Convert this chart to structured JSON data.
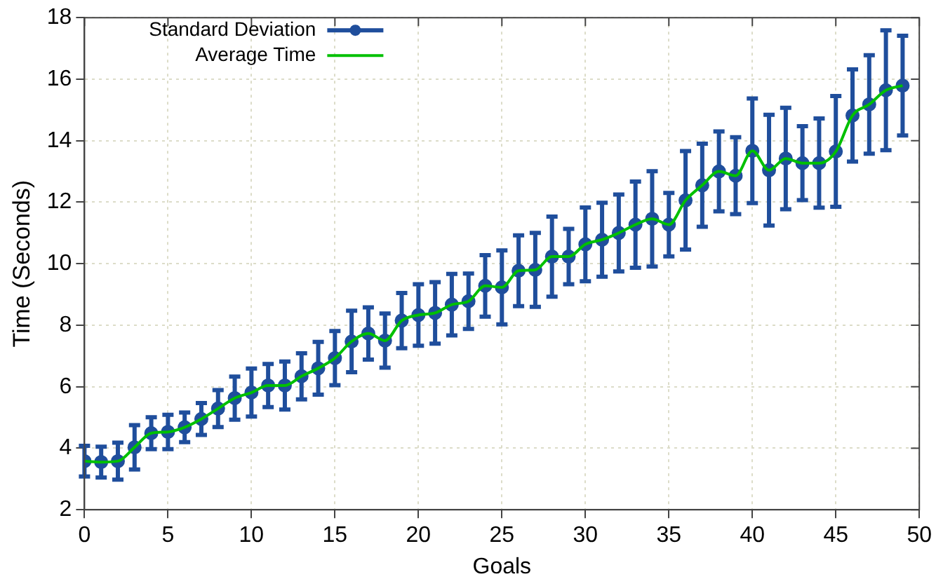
{
  "chart_data": {
    "type": "line",
    "xlabel": "Goals",
    "ylabel": "Time (Seconds)",
    "x": [
      0,
      1,
      2,
      3,
      4,
      5,
      6,
      7,
      8,
      9,
      10,
      11,
      12,
      13,
      14,
      15,
      16,
      17,
      18,
      19,
      20,
      21,
      22,
      23,
      24,
      25,
      26,
      27,
      28,
      29,
      30,
      31,
      32,
      33,
      34,
      35,
      36,
      37,
      38,
      39,
      40,
      41,
      42,
      43,
      44,
      45,
      46,
      47,
      48,
      49
    ],
    "series": [
      {
        "name": "Standard Deviation",
        "type": "scatter",
        "color": "#1f4e9c",
        "marker": "circle",
        "values": [
          3.58,
          3.55,
          3.58,
          4.03,
          4.49,
          4.53,
          4.68,
          4.95,
          5.29,
          5.63,
          5.81,
          6.04,
          6.04,
          6.34,
          6.6,
          6.93,
          7.47,
          7.73,
          7.5,
          8.15,
          8.33,
          8.4,
          8.67,
          8.78,
          9.28,
          9.23,
          9.77,
          9.8,
          10.23,
          10.23,
          10.63,
          10.78,
          11.0,
          11.27,
          11.46,
          11.27,
          12.06,
          12.55,
          13.0,
          12.86,
          13.67,
          13.04,
          13.42,
          13.27,
          13.27,
          13.65,
          14.82,
          15.18,
          15.64,
          15.79
        ],
        "errors": [
          0.5,
          0.5,
          0.6,
          0.72,
          0.52,
          0.56,
          0.48,
          0.52,
          0.6,
          0.7,
          0.78,
          0.7,
          0.78,
          0.75,
          0.86,
          0.88,
          1.0,
          0.85,
          0.88,
          0.9,
          1.0,
          1.0,
          1.0,
          0.9,
          1.0,
          1.2,
          1.15,
          1.2,
          1.3,
          0.9,
          1.2,
          1.2,
          1.25,
          1.4,
          1.55,
          1.03,
          1.6,
          1.35,
          1.3,
          1.25,
          1.7,
          1.8,
          1.65,
          1.2,
          1.45,
          1.8,
          1.5,
          1.6,
          1.95,
          1.62
        ]
      },
      {
        "name": "Average Time",
        "type": "line",
        "color": "#00c000",
        "marker": "none",
        "line_style": "solid",
        "values": [
          3.58,
          3.55,
          3.58,
          4.03,
          4.49,
          4.53,
          4.68,
          4.95,
          5.29,
          5.63,
          5.81,
          6.04,
          6.04,
          6.34,
          6.6,
          6.93,
          7.47,
          7.73,
          7.5,
          8.15,
          8.33,
          8.4,
          8.67,
          8.78,
          9.28,
          9.23,
          9.77,
          9.8,
          10.23,
          10.23,
          10.63,
          10.78,
          11.0,
          11.27,
          11.46,
          11.27,
          12.06,
          12.55,
          13.0,
          12.86,
          13.67,
          13.04,
          13.42,
          13.27,
          13.27,
          13.65,
          14.82,
          15.18,
          15.64,
          15.79
        ]
      }
    ],
    "xlim": [
      0,
      50
    ],
    "xticks": [
      0,
      5,
      10,
      15,
      20,
      25,
      30,
      35,
      40,
      45,
      50
    ],
    "ylim": [
      2,
      18
    ],
    "yticks": [
      2,
      4,
      6,
      8,
      10,
      12,
      14,
      16,
      18
    ],
    "grid": true,
    "legend": "top left"
  }
}
